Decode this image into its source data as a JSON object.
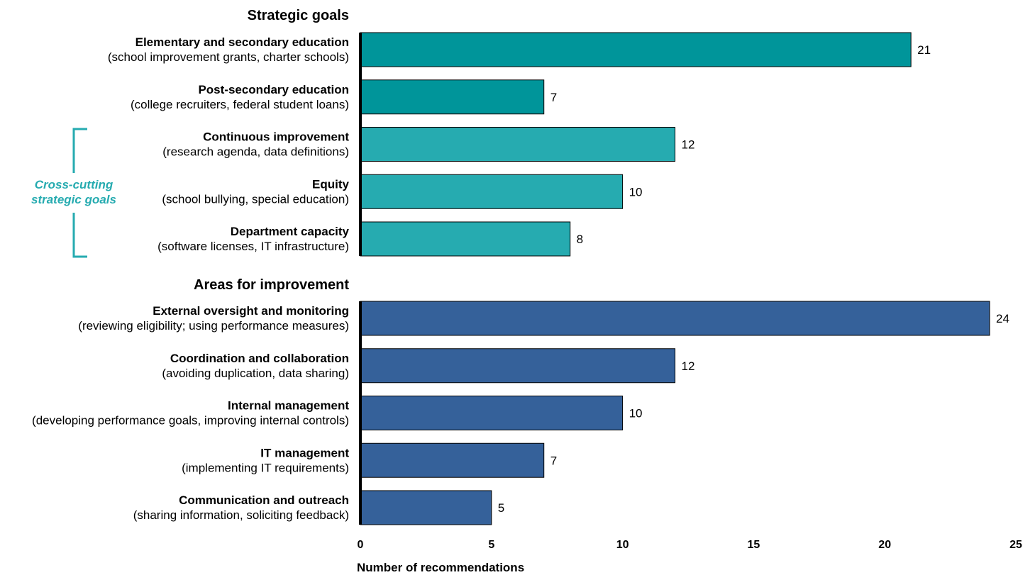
{
  "chart_data": {
    "type": "bar",
    "orientation": "horizontal",
    "xlabel": "Number of recommendations",
    "xlim": [
      0,
      25
    ],
    "xticks": [
      0,
      5,
      10,
      15,
      20,
      25
    ],
    "groups": [
      {
        "title": "Strategic goals",
        "items": [
          {
            "label": "Elementary and secondary education",
            "sub": "(school improvement grants, charter schools)",
            "value": 21,
            "color": "#00959A"
          },
          {
            "label": "Post-secondary education",
            "sub": "(college recruiters, federal student loans)",
            "value": 7,
            "color": "#00959A"
          },
          {
            "label": "Continuous improvement",
            "sub": "(research agenda, data definitions)",
            "value": 12,
            "color": "#26ABB0"
          },
          {
            "label": "Equity",
            "sub": "(school bullying, special education)",
            "value": 10,
            "color": "#26ABB0"
          },
          {
            "label": "Department capacity",
            "sub": "(software licenses, IT infrastructure)",
            "value": 8,
            "color": "#26ABB0"
          }
        ]
      },
      {
        "title": "Areas for improvement",
        "items": [
          {
            "label": "External oversight and monitoring",
            "sub": "(reviewing eligibility; using performance measures)",
            "value": 24,
            "color": "#35619A"
          },
          {
            "label": "Coordination and collaboration",
            "sub": "(avoiding duplication, data sharing)",
            "value": 12,
            "color": "#35619A"
          },
          {
            "label": "Internal management",
            "sub": "(developing performance goals, improving internal controls)",
            "value": 10,
            "color": "#35619A"
          },
          {
            "label": "IT management",
            "sub": "(implementing IT requirements)",
            "value": 7,
            "color": "#35619A"
          },
          {
            "label": "Communication and outreach",
            "sub": "(sharing information, soliciting feedback)",
            "value": 5,
            "color": "#35619A"
          }
        ]
      }
    ],
    "annotation": {
      "text": [
        "Cross-cutting",
        "strategic goals"
      ],
      "color": "#26ABB0"
    },
    "grid": false,
    "legend": "none"
  }
}
